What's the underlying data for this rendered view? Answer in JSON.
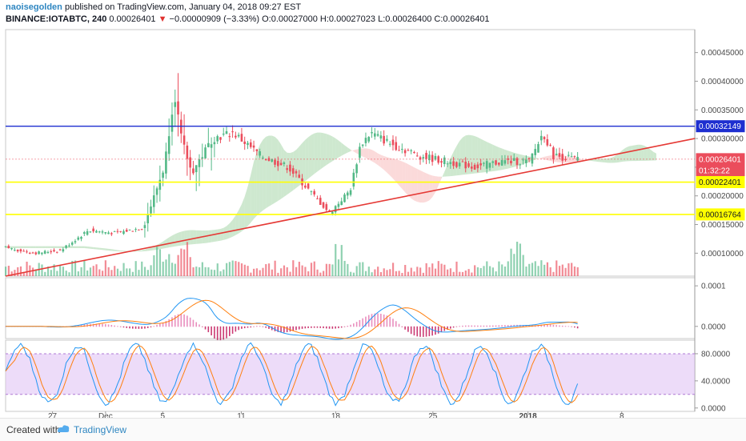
{
  "header": {
    "author": "naoisegolden",
    "published": "published on TradingView.com, January 04, 2018 09:27 EST",
    "symbol": "BINANCE:IOTABTC, 240",
    "last": "0.00026401",
    "change": "−0.00000909 (−3.33%)",
    "ohlc": "O:0.00027000 H:0.00027023 L:0.00026400 C:0.00026401"
  },
  "footer": {
    "created_with": "Created with",
    "brand": "TradingView"
  },
  "colors": {
    "up": "#53b987",
    "down": "#eb4d5c",
    "trendline": "#e53935",
    "resistance": "#1e2fd0",
    "support": "#ffff00",
    "cloud_green": "#a5d6a7",
    "cloud_red": "#f8bbbb",
    "stoch_band": "#e1c4f5"
  },
  "chart_data": [
    {
      "type": "candlestick",
      "title": "",
      "x_ticks": [
        "27",
        "Dec",
        "5",
        "11",
        "18",
        "25",
        "2018",
        "8"
      ],
      "y_ticks": [
        "0.00010000",
        "0.00015000",
        "0.00020000",
        "0.00025000",
        "0.00030000",
        "0.00035000",
        "0.00040000",
        "0.00045000"
      ],
      "ylim": [
        6e-05,
        0.00049
      ],
      "price_labels": [
        "0.00032149",
        "0.00026401",
        "01:32:22",
        "0.00022401",
        "0.00016764"
      ],
      "horizontal_lines": [
        {
          "name": "resistance",
          "value": 0.00032149
        },
        {
          "name": "support-1",
          "value": 0.00022401
        },
        {
          "name": "support-2",
          "value": 0.00016764
        }
      ],
      "trendline": {
        "from_x": 0,
        "from_y": 6e-05,
        "to_x": 1,
        "to_y": 0.0003
      },
      "close_profile": [
        [
          0,
          0.00011
        ],
        [
          0.04,
          0.0001
        ],
        [
          0.08,
          0.000105
        ],
        [
          0.12,
          0.00014
        ],
        [
          0.16,
          0.000135
        ],
        [
          0.2,
          0.000145
        ],
        [
          0.23,
          0.00025
        ],
        [
          0.245,
          0.00038
        ],
        [
          0.255,
          0.0003
        ],
        [
          0.27,
          0.00024
        ],
        [
          0.3,
          0.0003
        ],
        [
          0.33,
          0.00031
        ],
        [
          0.37,
          0.00027
        ],
        [
          0.41,
          0.00025
        ],
        [
          0.44,
          0.00021
        ],
        [
          0.47,
          0.00017
        ],
        [
          0.5,
          0.00021
        ],
        [
          0.515,
          0.00029
        ],
        [
          0.53,
          0.00031
        ],
        [
          0.56,
          0.00029
        ],
        [
          0.6,
          0.00027
        ],
        [
          0.64,
          0.00026
        ],
        [
          0.68,
          0.00025
        ],
        [
          0.72,
          0.00026
        ],
        [
          0.76,
          0.00026
        ],
        [
          0.78,
          0.00031
        ],
        [
          0.795,
          0.00027
        ],
        [
          0.83,
          0.000264
        ]
      ]
    },
    {
      "type": "line",
      "title": "",
      "y_ticks": [
        "0.0000",
        "0.0001"
      ],
      "ylim": [
        -3e-05,
        0.00012
      ]
    },
    {
      "type": "line",
      "title": "",
      "y_ticks": [
        "0.0000",
        "40.0000",
        "80.0000"
      ],
      "ylim": [
        -5,
        100
      ],
      "band": [
        20,
        80
      ]
    }
  ]
}
